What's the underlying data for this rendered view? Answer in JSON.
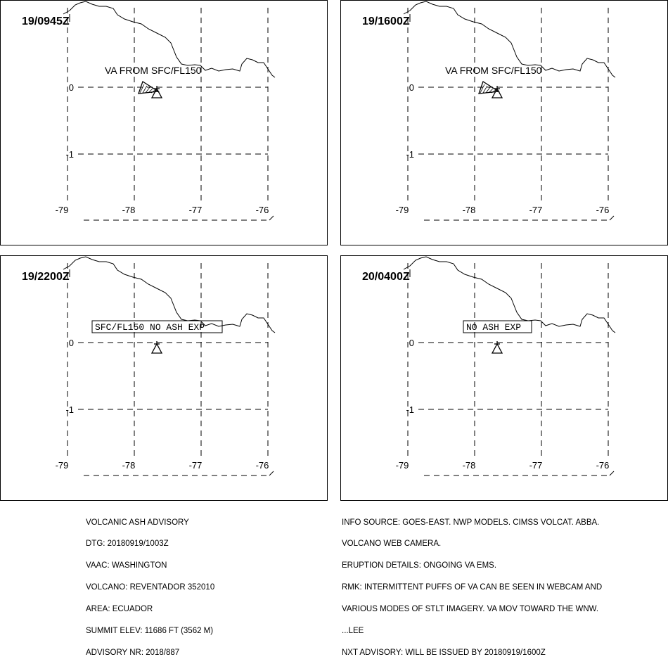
{
  "panels": [
    {
      "dtg": "19/0945Z",
      "label": "VA FROM SFC/FL150",
      "boxed": false,
      "ash_area": true
    },
    {
      "dtg": "19/1600Z",
      "label": "VA FROM SFC/FL150",
      "boxed": false,
      "ash_area": true
    },
    {
      "dtg": "19/2200Z",
      "label": "SFC/FL150 NO ASH EXP",
      "boxed": true,
      "ash_area": false
    },
    {
      "dtg": "20/0400Z",
      "label": "NO ASH EXP",
      "boxed": true,
      "ash_area": false
    }
  ],
  "axes": {
    "lat_labels": [
      "0",
      "-1"
    ],
    "lon_labels": [
      "-79",
      "-78",
      "-77",
      "-76"
    ]
  },
  "advisory_left": [
    "VOLCANIC ASH ADVISORY",
    "DTG: 20180919/1003Z",
    "VAAC: WASHINGTON",
    "VOLCANO: REVENTADOR 352010",
    "AREA: ECUADOR",
    "SUMMIT ELEV: 11686 FT (3562 M)",
    "ADVISORY NR: 2018/887"
  ],
  "advisory_right": [
    "INFO SOURCE: GOES-EAST. NWP MODELS. CIMSS VOLCAT. ABBA.",
    "VOLCANO WEB CAMERA.",
    "ERUPTION DETAILS: ONGOING VA EMS.",
    "RMK: INTERMITTENT PUFFS OF VA CAN BE SEEN IN WEBCAM AND",
    "VARIOUS MODES OF STLT IMAGERY. VA MOV TOWARD THE WNW.",
    "...LEE",
    "NXT ADVISORY: WILL BE ISSUED BY 20180919/1600Z"
  ]
}
